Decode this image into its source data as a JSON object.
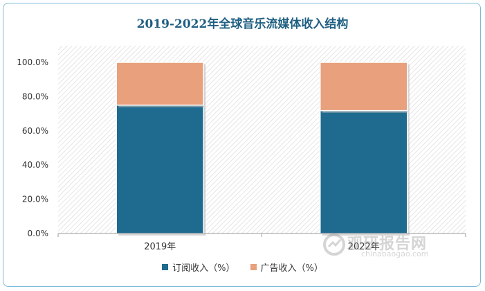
{
  "chart_data": {
    "type": "bar",
    "stacked": true,
    "title": "2019-2022年全球音乐流媒体收入结构",
    "categories": [
      "2019年",
      "2022年"
    ],
    "series": [
      {
        "name": "订阅收入（%）",
        "values": [
          75.0,
          71.8
        ],
        "color": "#1f6b8f"
      },
      {
        "name": "广告收入（%）",
        "values": [
          25.0,
          28.2
        ],
        "color": "#e8a07d"
      }
    ],
    "yticks": [
      "0.0%",
      "20.0%",
      "40.0%",
      "60.0%",
      "80.0%",
      "100.0%"
    ],
    "ylim": [
      0,
      100
    ],
    "grid": false,
    "legend": "bottom",
    "plot_background": "hatched-gray"
  },
  "watermark": {
    "text_cn": "观研报告网",
    "text_en": "chinabaogao.com"
  }
}
